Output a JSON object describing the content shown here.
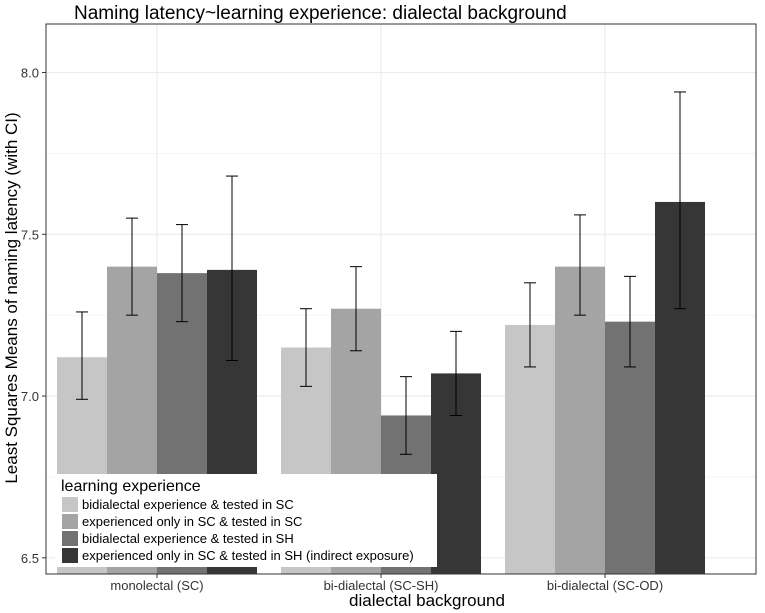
{
  "chart_data": {
    "type": "bar",
    "title": "Naming latency~learning experience: dialectal background",
    "xlabel": "dialectal background",
    "ylabel": "Least Squares Means of naming latency (with CI)",
    "ylim": [
      6.45,
      8.15
    ],
    "yticks": [
      "6.5",
      "7.0",
      "7.5",
      "8.0"
    ],
    "ytick_values": [
      6.5,
      7.0,
      7.5,
      8.0
    ],
    "grid": true,
    "categories": [
      "monolectal (SC)",
      "bi-dialectal (SC-SH)",
      "bi-dialectal (SC-OD)"
    ],
    "legend": {
      "title": "learning experience",
      "position": "bottom-left"
    },
    "series": [
      {
        "name": "bidialectal experience & tested in SC",
        "color": "#c6c6c6",
        "values": [
          7.12,
          7.15,
          7.22
        ],
        "ci_low": [
          6.99,
          7.03,
          7.09
        ],
        "ci_high": [
          7.26,
          7.27,
          7.35
        ]
      },
      {
        "name": "experienced only in SC & tested in SC",
        "color": "#a4a4a4",
        "values": [
          7.4,
          7.27,
          7.4
        ],
        "ci_low": [
          7.25,
          7.14,
          7.25
        ],
        "ci_high": [
          7.55,
          7.4,
          7.56
        ]
      },
      {
        "name": "bidialectal experience & tested in SH",
        "color": "#727272",
        "values": [
          7.38,
          6.94,
          7.23
        ],
        "ci_low": [
          7.23,
          6.82,
          7.09
        ],
        "ci_high": [
          7.53,
          7.06,
          7.37
        ]
      },
      {
        "name": "experienced only in SC & tested in SH (indirect exposure)",
        "color": "#363636",
        "values": [
          7.39,
          7.07,
          7.6
        ],
        "ci_low": [
          7.11,
          6.94,
          7.27
        ],
        "ci_high": [
          7.68,
          7.2,
          7.94
        ]
      }
    ]
  }
}
